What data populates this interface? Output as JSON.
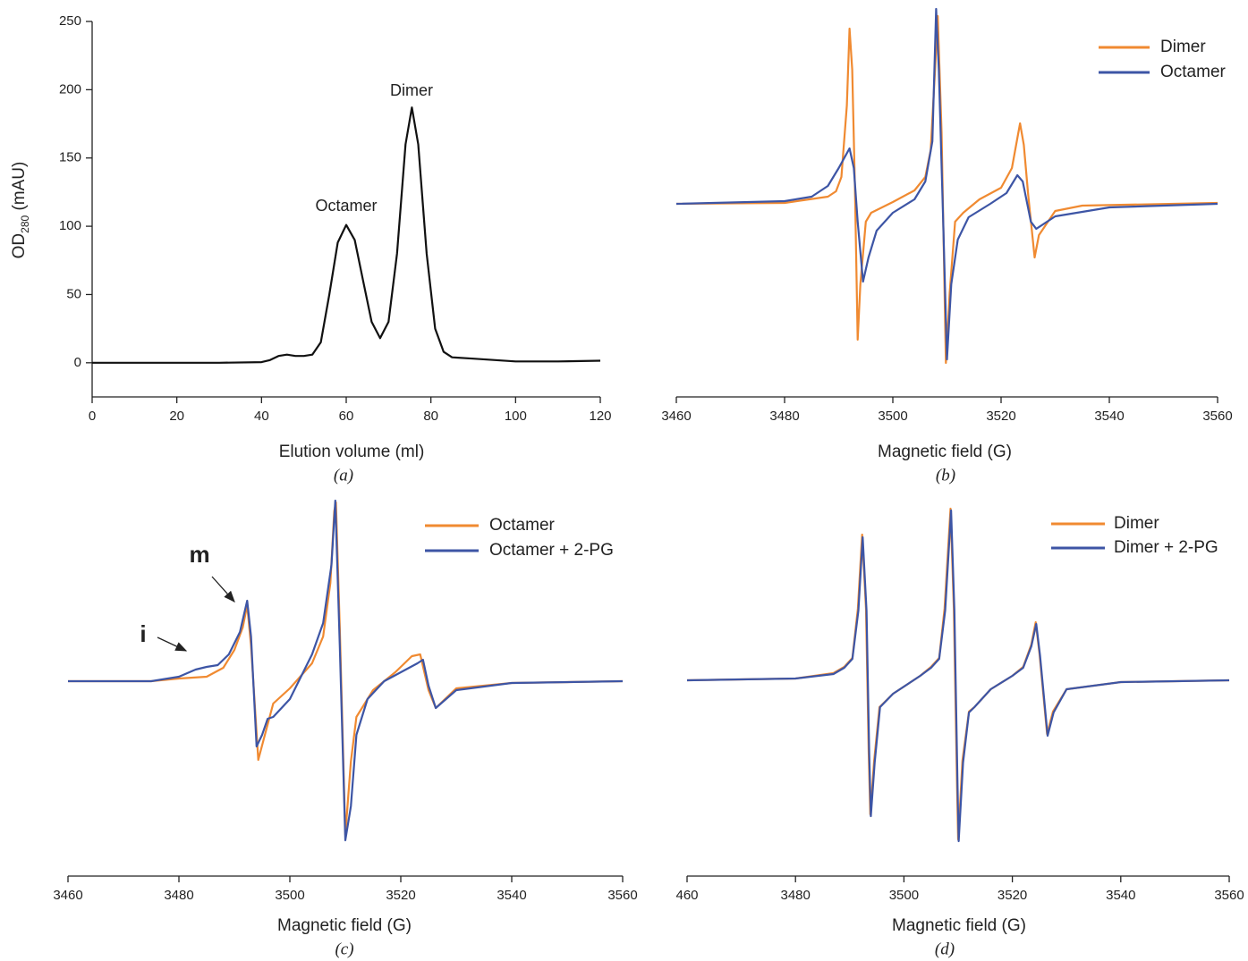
{
  "chart_data": [
    {
      "type": "line",
      "xlabel": "Elution volume (ml)",
      "ylabel": {
        "main": "OD",
        "sub": "280",
        "unit": "(mAU)"
      },
      "caption": "(a)",
      "annotations": [
        "Octamer",
        "Dimer"
      ],
      "xlim": [
        0,
        120
      ],
      "xticks": [
        0,
        20,
        40,
        60,
        80,
        100,
        120
      ],
      "ylim": [
        -25,
        250
      ],
      "yticks": [
        0,
        50,
        100,
        150,
        200,
        250
      ],
      "series": [
        {
          "color": "#111111",
          "x": [
            0,
            10,
            20,
            30,
            40,
            42,
            44,
            46,
            48,
            50,
            52,
            54,
            56,
            58,
            60,
            62,
            64,
            66,
            68,
            70,
            72,
            74,
            75.5,
            77,
            79,
            81,
            83,
            85,
            90,
            100,
            110,
            120
          ],
          "values": [
            0,
            0,
            0,
            0,
            0.5,
            2,
            5,
            6,
            5,
            5,
            6,
            15,
            50,
            88,
            101,
            90,
            60,
            30,
            18,
            30,
            80,
            160,
            187,
            160,
            80,
            25,
            8,
            4,
            3,
            1,
            1,
            1.5
          ]
        }
      ]
    },
    {
      "type": "line",
      "xlabel": "Magnetic field (G)",
      "caption": "(b)",
      "xlim": [
        3460,
        3560
      ],
      "xticks": [
        3460,
        3480,
        3500,
        3520,
        3540,
        3560
      ],
      "ylim": [
        -216,
        208
      ],
      "series": [
        {
          "name": "Dimer",
          "color": "#f08a31",
          "x": [
            3460,
            3480,
            3488,
            3489.5,
            3490.5,
            3491.5,
            3492,
            3492.5,
            3493,
            3493.5,
            3494,
            3495,
            3496,
            3500,
            3504,
            3506,
            3507,
            3507.8,
            3508.3,
            3509,
            3509.8,
            3510.5,
            3511.5,
            3513,
            3516,
            3520,
            3522,
            3523.5,
            3524.2,
            3525,
            3526.2,
            3527,
            3530,
            3535,
            3560
          ],
          "values": [
            0,
            1,
            8,
            14,
            30,
            110,
            196,
            150,
            20,
            -152,
            -90,
            -20,
            -10,
            2,
            15,
            30,
            60,
            150,
            210,
            80,
            -178,
            -100,
            -20,
            -10,
            5,
            18,
            40,
            90,
            66,
            10,
            -60,
            -35,
            -8,
            -2,
            1
          ]
        },
        {
          "name": "Octamer",
          "color": "#3d55a5",
          "x": [
            3460,
            3480,
            3485,
            3488,
            3490,
            3492,
            3492.8,
            3493.5,
            3494.5,
            3495.5,
            3497,
            3500,
            3504,
            3506,
            3507.3,
            3508,
            3508.5,
            3509.3,
            3510,
            3510.8,
            3512,
            3514,
            3518,
            3521,
            3523,
            3524,
            3525.5,
            3526.5,
            3530,
            3540,
            3560
          ],
          "values": [
            0,
            3,
            8,
            20,
            40,
            62,
            40,
            -20,
            -87,
            -60,
            -30,
            -10,
            5,
            25,
            70,
            218,
            150,
            -20,
            -174,
            -90,
            -40,
            -15,
            0,
            12,
            32,
            25,
            -20,
            -28,
            -14,
            -4,
            0
          ]
        }
      ]
    },
    {
      "type": "line",
      "xlabel": "Magnetic field (G)",
      "caption": "(c)",
      "annotations": [
        "m",
        "i"
      ],
      "xlim": [
        3460,
        3560
      ],
      "xticks": [
        3460,
        3480,
        3500,
        3520,
        3540,
        3560
      ],
      "ylim": [
        -218,
        200
      ],
      "series": [
        {
          "name": "Octamer",
          "color": "#f08a31",
          "x": [
            3460,
            3475,
            3480,
            3485,
            3488,
            3490,
            3491.5,
            3492.3,
            3493,
            3494.3,
            3495.5,
            3497,
            3500,
            3504,
            3506,
            3507.3,
            3508,
            3508.3,
            3509,
            3510,
            3511,
            3512,
            3515,
            3519,
            3522,
            3523.5,
            3525,
            3526.3,
            3530,
            3540,
            3560
          ],
          "values": [
            0,
            0,
            3,
            5,
            15,
            35,
            60,
            85,
            40,
            -88,
            -60,
            -25,
            -8,
            20,
            50,
            110,
            190,
            200,
            60,
            -172,
            -90,
            -40,
            -10,
            10,
            28,
            30,
            -10,
            -30,
            -8,
            -2,
            0
          ]
        },
        {
          "name": "Octamer + 2-PG",
          "color": "#3d55a5",
          "x": [
            3460,
            3475,
            3480,
            3483,
            3485,
            3487,
            3489,
            3491,
            3492.3,
            3493,
            3494,
            3495,
            3496,
            3497,
            3500,
            3504,
            3506,
            3507.5,
            3508.2,
            3509,
            3510,
            3511,
            3512,
            3514,
            3517,
            3520,
            3523,
            3524,
            3525,
            3526.3,
            3530,
            3540,
            3560
          ],
          "values": [
            0,
            0,
            5,
            13,
            16,
            18,
            30,
            55,
            90,
            50,
            -73,
            -60,
            -42,
            -40,
            -20,
            30,
            65,
            130,
            202,
            40,
            -178,
            -140,
            -60,
            -20,
            0,
            10,
            20,
            24,
            -5,
            -30,
            -10,
            -2,
            0
          ]
        }
      ]
    },
    {
      "type": "line",
      "xlabel": "Magnetic field (G)",
      "caption": "(d)",
      "xlim": [
        3460,
        3560
      ],
      "xticks": [
        {
          "value": 3460,
          "label": "460"
        },
        3480,
        3500,
        3520,
        3540,
        3560
      ],
      "ylim": [
        -219,
        200
      ],
      "series": [
        {
          "name": "Dimer",
          "color": "#f08a31",
          "x": [
            3460,
            3480,
            3487,
            3489,
            3490.5,
            3491.5,
            3492.3,
            3493,
            3493.5,
            3493.8,
            3494.5,
            3495.5,
            3498,
            3503,
            3505,
            3506.5,
            3507.5,
            3508.6,
            3509.2,
            3509.8,
            3510,
            3510.8,
            3512,
            3513,
            3516,
            3520,
            3522,
            3523.5,
            3524.3,
            3525,
            3526.4,
            3527.5,
            3530,
            3540,
            3560
          ],
          "values": [
            0,
            2,
            8,
            15,
            25,
            80,
            163,
            80,
            -80,
            -150,
            -90,
            -30,
            -15,
            5,
            15,
            25,
            80,
            192,
            80,
            -120,
            -178,
            -90,
            -35,
            -30,
            -10,
            5,
            15,
            40,
            65,
            30,
            -60,
            -35,
            -10,
            -2,
            0
          ]
        },
        {
          "name": "Dimer + 2-PG",
          "color": "#3d55a5",
          "x": [
            3460,
            3480,
            3487,
            3489,
            3490.5,
            3491.6,
            3492.4,
            3493.1,
            3493.6,
            3493.9,
            3494.6,
            3495.6,
            3498,
            3503,
            3505,
            3506.5,
            3507.6,
            3508.7,
            3509.3,
            3509.9,
            3510.1,
            3510.9,
            3512,
            3513,
            3516,
            3520,
            3522,
            3523.5,
            3524.4,
            3525.1,
            3526.5,
            3527.6,
            3530,
            3540,
            3560
          ],
          "values": [
            0,
            2,
            7,
            14,
            24,
            78,
            160,
            78,
            -82,
            -152,
            -92,
            -30,
            -15,
            5,
            14,
            24,
            78,
            190,
            78,
            -122,
            -180,
            -92,
            -36,
            -30,
            -10,
            5,
            14,
            38,
            63,
            28,
            -62,
            -36,
            -10,
            -2,
            0
          ]
        }
      ]
    }
  ]
}
